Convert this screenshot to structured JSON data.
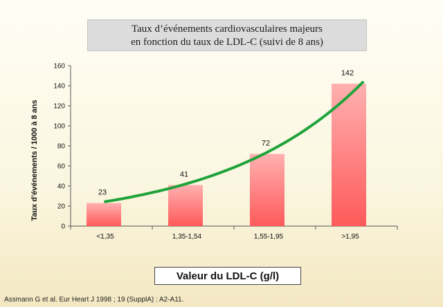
{
  "header": {
    "title_line1": "Taux d’événements cardiovasculaires majeurs",
    "title_line2": "en fonction du taux de LDL-C (suivi de 8 ans)"
  },
  "source": "Assmann G et al. Eur Heart J 1998 ; 19 (SupplA) : A2-A11.",
  "chart_data": {
    "type": "bar",
    "title": "Taux d’événements cardiovasculaires majeurs en fonction du taux de LDL-C (suivi de 8 ans)",
    "xlabel": "Valeur du LDL-C (g/l)",
    "ylabel": "Taux d’événements / 1000 à 8 ans",
    "categories": [
      "<1,35",
      "1,35-1,54",
      "1,55-1,95",
      ">1,95"
    ],
    "values": [
      23,
      41,
      72,
      142
    ],
    "data_labels": [
      "23",
      "41",
      "72",
      "142"
    ],
    "ylim": [
      0,
      160
    ],
    "yticks": [
      0,
      20,
      40,
      60,
      80,
      100,
      120,
      140,
      160
    ],
    "grid": false,
    "legend": "none",
    "trend_line": "green curve through bar tops",
    "colors": {
      "bar_top": "#ffb0b0",
      "bar_bottom": "#ff5a5a",
      "trend": "#1fa33a",
      "axis": "#555555"
    }
  }
}
